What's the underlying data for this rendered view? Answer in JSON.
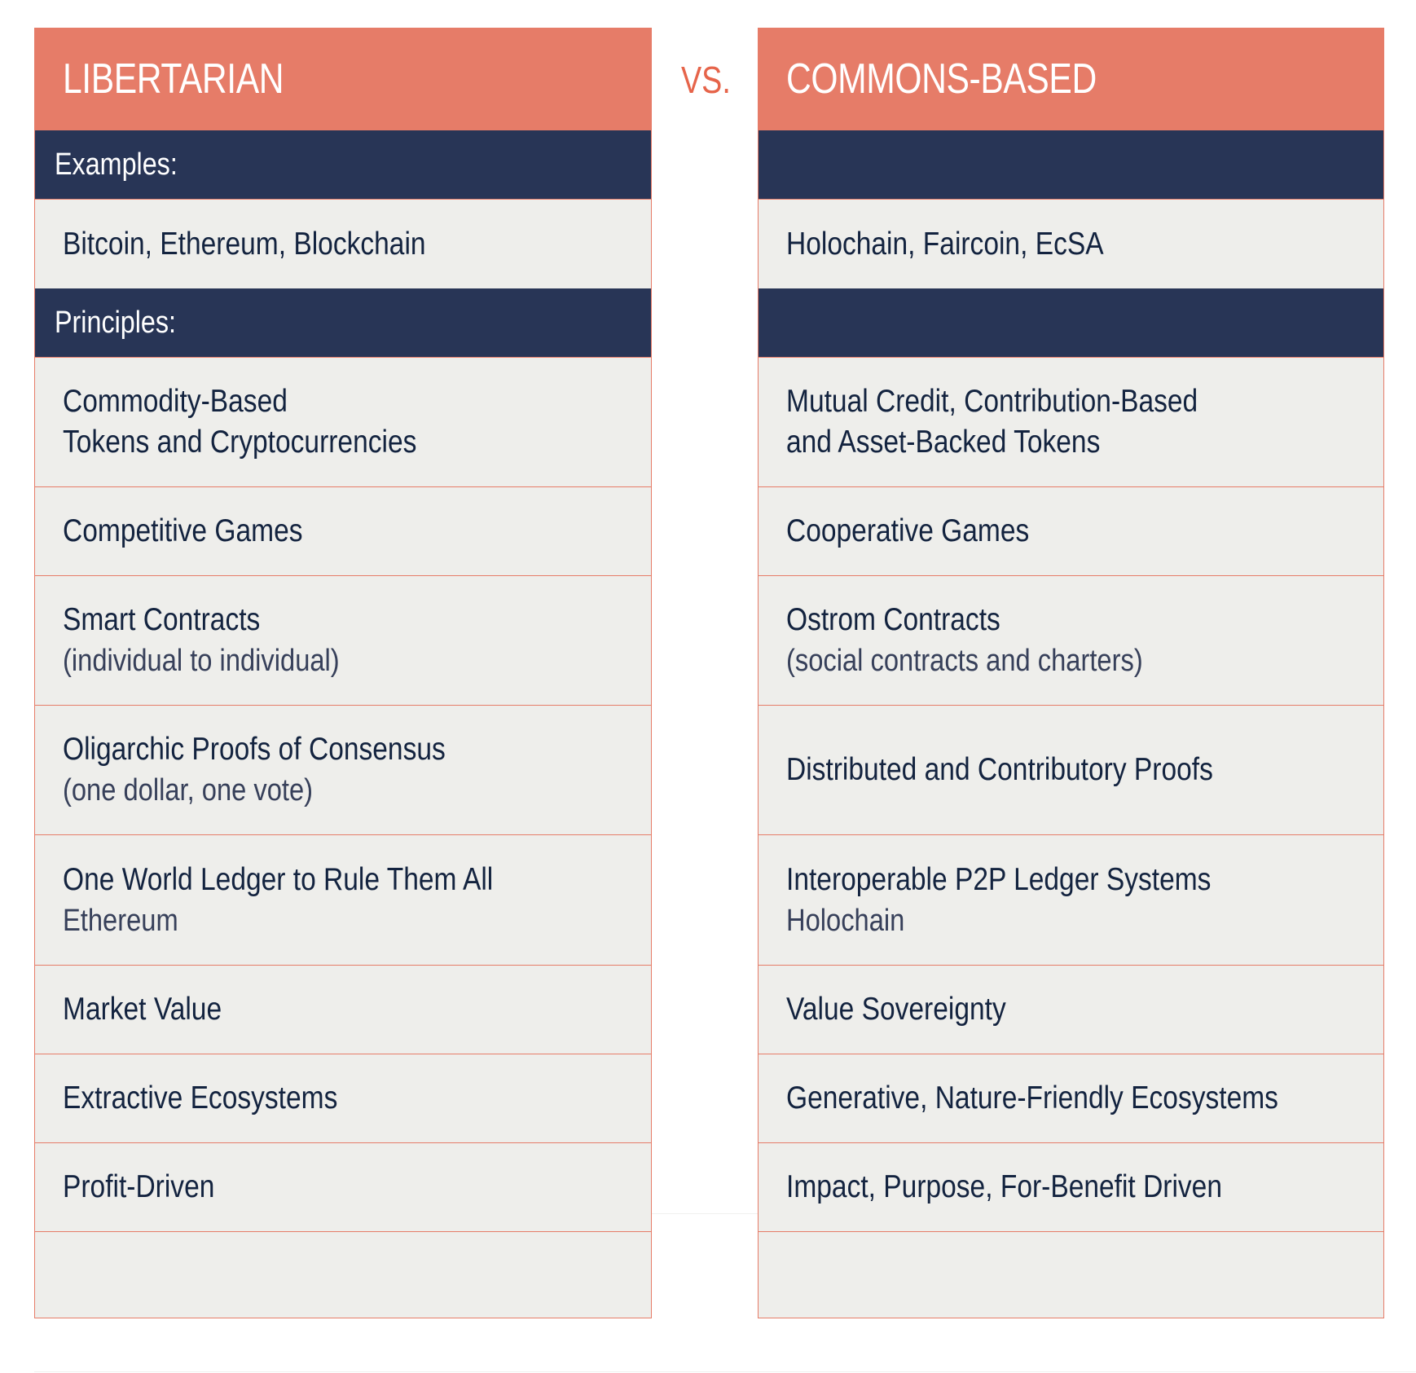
{
  "vs_label": "VS.",
  "left": {
    "title": "LIBERTARIAN",
    "examples_label": "Examples:",
    "examples": "Bitcoin, Ethereum, Blockchain",
    "principles_label": "Principles:",
    "principles": [
      {
        "main": "Commodity-Based",
        "main2": "Tokens and Cryptocurrencies",
        "sub": ""
      },
      {
        "main": "Competitive Games",
        "main2": "",
        "sub": ""
      },
      {
        "main": "Smart Contracts",
        "main2": "",
        "sub": "(individual to individual)"
      },
      {
        "main": "Oligarchic Proofs of Consensus",
        "main2": "",
        "sub": "(one dollar, one vote)"
      },
      {
        "main": "One World Ledger to Rule Them All",
        "main2": "",
        "sub": "Ethereum"
      },
      {
        "main": "Market Value",
        "main2": "",
        "sub": ""
      },
      {
        "main": "Extractive Ecosystems",
        "main2": "",
        "sub": ""
      },
      {
        "main": "Profit-Driven",
        "main2": "",
        "sub": ""
      }
    ]
  },
  "right": {
    "title": "COMMONS-BASED",
    "examples_label": "",
    "examples": "Holochain, Faircoin, EcSA",
    "principles_label": "",
    "principles": [
      {
        "main": "Mutual Credit, Contribution-Based",
        "main2": "and Asset-Backed Tokens",
        "sub": ""
      },
      {
        "main": "Cooperative Games",
        "main2": "",
        "sub": ""
      },
      {
        "main": "Ostrom Contracts",
        "main2": "",
        "sub": "(social contracts and charters)"
      },
      {
        "main": "Distributed and Contributory Proofs",
        "main2": "",
        "sub": ""
      },
      {
        "main": "Interoperable P2P Ledger Systems",
        "main2": "",
        "sub": "Holochain"
      },
      {
        "main": "Value Sovereignty",
        "main2": "",
        "sub": ""
      },
      {
        "main": "Generative, Nature-Friendly Ecosystems",
        "main2": "",
        "sub": ""
      },
      {
        "main": "Impact, Purpose, For-Benefit Driven",
        "main2": "",
        "sub": ""
      }
    ]
  }
}
